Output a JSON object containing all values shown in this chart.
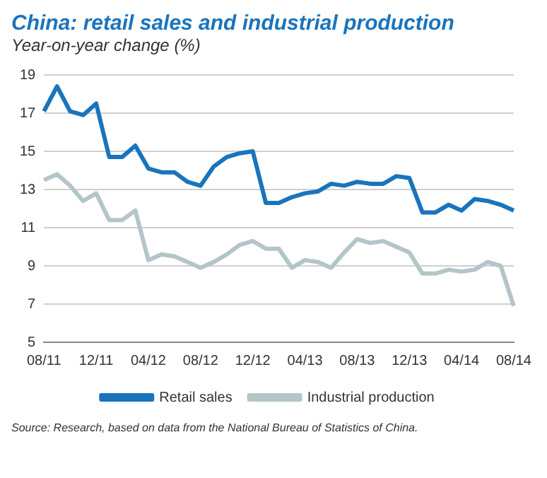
{
  "chart_data": {
    "type": "line",
    "title": "China: retail sales and industrial production",
    "subtitle": "Year-on-year change (%)",
    "categories": [
      "08/11",
      null,
      null,
      null,
      "12/11",
      null,
      null,
      null,
      "04/12",
      null,
      null,
      null,
      "08/12",
      null,
      null,
      null,
      "12/12",
      null,
      null,
      null,
      "04/13",
      null,
      null,
      null,
      "08/13",
      null,
      null,
      null,
      "12/13",
      null,
      null,
      null,
      "04/14",
      null,
      null,
      null,
      "08/14"
    ],
    "series": [
      {
        "name": "Retail sales",
        "color": "#1a74bc",
        "values": [
          17.1,
          18.4,
          17.1,
          16.9,
          17.5,
          14.7,
          14.7,
          15.3,
          14.1,
          13.9,
          13.9,
          13.4,
          13.2,
          14.2,
          14.7,
          14.9,
          15.0,
          12.3,
          12.3,
          12.6,
          12.8,
          12.9,
          13.3,
          13.2,
          13.4,
          13.3,
          13.3,
          13.7,
          13.6,
          11.8,
          11.8,
          12.2,
          11.9,
          12.5,
          12.4,
          12.2,
          11.9
        ]
      },
      {
        "name": "Industrial production",
        "color": "#b4c5c8",
        "values": [
          13.5,
          13.8,
          13.2,
          12.4,
          12.8,
          11.4,
          11.4,
          11.9,
          9.3,
          9.6,
          9.5,
          9.2,
          8.9,
          9.2,
          9.6,
          10.1,
          10.3,
          9.9,
          9.9,
          8.9,
          9.3,
          9.2,
          8.9,
          9.7,
          10.4,
          10.2,
          10.3,
          10.0,
          9.7,
          8.6,
          8.6,
          8.8,
          8.7,
          8.8,
          9.2,
          9.0,
          6.9
        ]
      }
    ],
    "ylim": [
      5,
      19
    ],
    "yticks": [
      5,
      7,
      9,
      11,
      13,
      15,
      17,
      19
    ],
    "grid": "y",
    "legend": "bottom",
    "marker": "none",
    "line_style": "solid",
    "annotations": [
      "Source: Research, based on data from the National Bureau of Statistics of China."
    ]
  }
}
